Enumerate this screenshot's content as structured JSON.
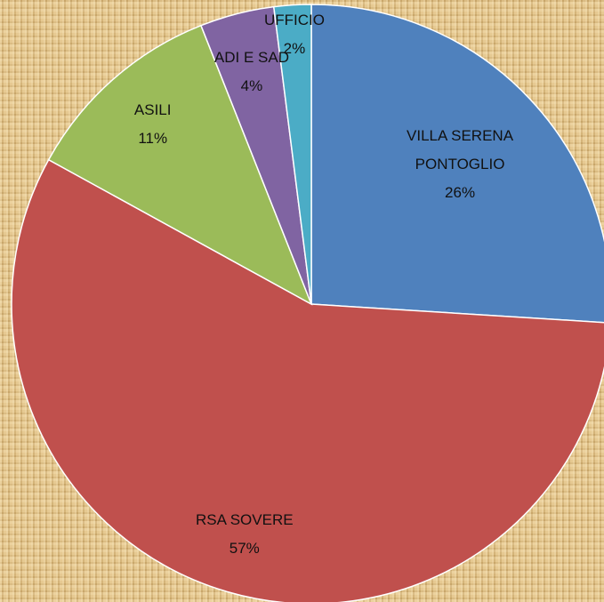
{
  "chart_data": {
    "type": "pie",
    "categories": [
      "VILLA SERENA PONTOGLIO",
      "RSA SOVERE",
      "ASILI",
      "ADI E SAD",
      "UFFICIO"
    ],
    "values": [
      26,
      57,
      11,
      4,
      2
    ],
    "value_labels": [
      "26%",
      "57%",
      "11%",
      "4%",
      "2%"
    ],
    "colors": [
      "#4f81bd",
      "#c0504d",
      "#9bbb59",
      "#8064a2",
      "#4bacc6"
    ]
  }
}
